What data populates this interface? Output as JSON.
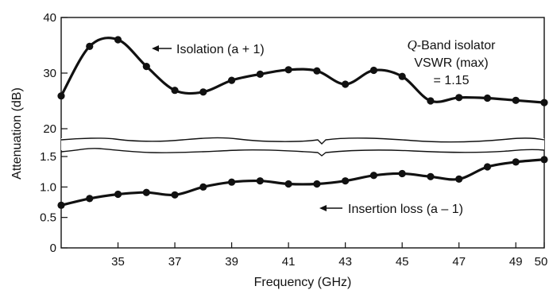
{
  "chart_data": {
    "type": "line",
    "xlabel": "Frequency (GHz)",
    "ylabel": "Attenuation (dB)",
    "xlim": [
      33,
      50
    ],
    "x_ticks": [
      35,
      37,
      39,
      41,
      43,
      45,
      47,
      49,
      50
    ],
    "x_tick_labels": [
      "35",
      "37",
      "39",
      "41",
      "43",
      "45",
      "47",
      "49",
      "50"
    ],
    "upper_axis": {
      "ylim": [
        18,
        40
      ],
      "ticks": [
        20,
        30,
        40
      ],
      "tick_labels": [
        "20",
        "30",
        "40"
      ]
    },
    "lower_axis": {
      "ylim": [
        0,
        1.6
      ],
      "ticks": [
        0,
        0.5,
        1.0,
        1.5
      ],
      "tick_labels": [
        "0",
        "0.5",
        "1.0",
        "1.5"
      ]
    },
    "axis_break": true,
    "grid": false,
    "series": [
      {
        "name": "Isolation (a + 1)",
        "axis": "upper",
        "x": [
          33,
          34,
          35,
          36,
          37,
          38,
          39,
          40,
          41,
          42,
          43,
          44,
          45,
          46,
          47,
          48,
          49,
          50
        ],
        "y": [
          25.9,
          34.8,
          36.0,
          31.2,
          26.9,
          26.6,
          28.7,
          29.8,
          30.6,
          30.4,
          28.0,
          30.5,
          29.4,
          25.0,
          25.6,
          25.5,
          25.1,
          24.7
        ]
      },
      {
        "name": "Insertion loss (a – 1)",
        "axis": "lower",
        "x": [
          33,
          34,
          35,
          36,
          37,
          38,
          39,
          40,
          41,
          42,
          43,
          44,
          45,
          46,
          47,
          48,
          49,
          50
        ],
        "y": [
          0.7,
          0.81,
          0.88,
          0.91,
          0.87,
          1.0,
          1.08,
          1.1,
          1.05,
          1.05,
          1.1,
          1.19,
          1.22,
          1.17,
          1.13,
          1.33,
          1.41,
          1.45
        ]
      }
    ],
    "annotations": {
      "isolation_label": "Isolation (a + 1)",
      "insertion_label": "Insertion loss (a – 1)",
      "note_q": "Q",
      "note_line1_rest": "-Band isolator",
      "note_line2": "VSWR (max)",
      "note_line3": "= 1.15"
    }
  }
}
